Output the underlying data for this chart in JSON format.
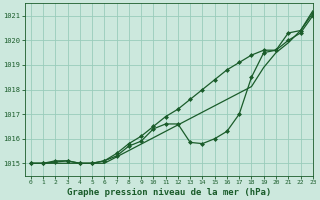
{
  "title": "Graphe pression niveau de la mer (hPa)",
  "bg_color": "#cce8dd",
  "grid_color": "#99ccbb",
  "line_color": "#1a5c2a",
  "xlim": [
    -0.5,
    23
  ],
  "ylim": [
    1014.5,
    1021.5
  ],
  "yticks": [
    1015,
    1016,
    1017,
    1018,
    1019,
    1020,
    1021
  ],
  "xticks": [
    0,
    1,
    2,
    3,
    4,
    5,
    6,
    7,
    8,
    9,
    10,
    11,
    12,
    13,
    14,
    15,
    16,
    17,
    18,
    19,
    20,
    21,
    22,
    23
  ],
  "line1": [
    1015.0,
    1015.0,
    1015.1,
    1015.1,
    1015.0,
    1015.0,
    1015.1,
    1015.3,
    1015.7,
    1015.9,
    1016.4,
    1016.6,
    1016.6,
    1015.85,
    1015.8,
    1016.0,
    1016.3,
    1017.0,
    1018.5,
    1019.5,
    1019.6,
    1020.3,
    1020.4,
    1021.1
  ],
  "line2": [
    1015.0,
    1015.0,
    1015.05,
    1015.1,
    1015.0,
    1015.0,
    1015.1,
    1015.4,
    1015.8,
    1016.1,
    1016.5,
    1016.9,
    1017.2,
    1017.6,
    1018.0,
    1018.4,
    1018.8,
    1019.1,
    1019.4,
    1019.6,
    1019.6,
    1020.0,
    1020.3,
    1021.0
  ],
  "line3": [
    1015.0,
    1015.0,
    1015.0,
    1015.0,
    1015.0,
    1015.0,
    1015.0,
    1015.26,
    1015.52,
    1015.78,
    1016.04,
    1016.3,
    1016.56,
    1016.82,
    1017.08,
    1017.34,
    1017.6,
    1017.86,
    1018.12,
    1018.9,
    1019.5,
    1019.9,
    1020.4,
    1021.2
  ],
  "marker": "D",
  "markersize": 2.0,
  "linewidth": 0.9
}
